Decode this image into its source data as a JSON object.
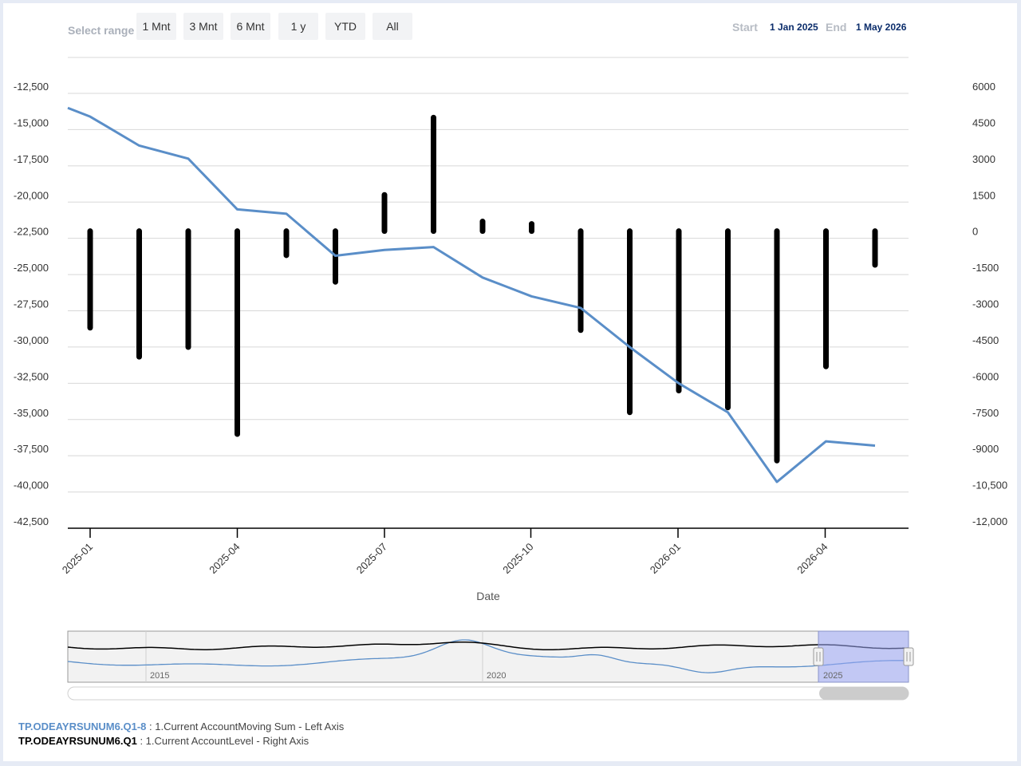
{
  "range_selector": {
    "label": "Select range",
    "buttons": [
      "1 Mnt",
      "3 Mnt",
      "6 Mnt",
      "1 y",
      "YTD",
      "All"
    ],
    "start_label": "Start",
    "start_value": "1 Jan 2025",
    "end_label": "End",
    "end_value": "1 May 2026"
  },
  "chart_data": {
    "type": "line+bar",
    "xlabel": "Date",
    "x_ticks": [
      "2025-01",
      "2025-04",
      "2025-07",
      "2025-10",
      "2026-01",
      "2026-04"
    ],
    "left_axis": {
      "ticks": [
        "-12,500",
        "-15,000",
        "-17,500",
        "-20,000",
        "-22,500",
        "-25,000",
        "-27,500",
        "-30,000",
        "-32,500",
        "-35,000",
        "-37,500",
        "-40,000",
        "-42,500"
      ],
      "ylim": [
        -42500,
        -12500
      ]
    },
    "right_axis": {
      "ticks": [
        "6000",
        "4500",
        "3000",
        "1500",
        "0",
        "-1500",
        "-3000",
        "-4500",
        "-6000",
        "-7500",
        "-9000",
        "-10,500",
        "-12,000"
      ],
      "ylim": [
        -12000,
        6000
      ]
    },
    "x": [
      "2025-01",
      "2025-02",
      "2025-03",
      "2025-04",
      "2025-05",
      "2025-06",
      "2025-07",
      "2025-08",
      "2025-09",
      "2025-10",
      "2025-11",
      "2025-12",
      "2026-01",
      "2026-02",
      "2026-03",
      "2026-04",
      "2026-05"
    ],
    "series": [
      {
        "name": "TP.ODEAYRSUNUM6.Q1-8",
        "type": "line",
        "axis": "left",
        "color": "#5a8ec8",
        "values": [
          -14600,
          -16600,
          -17500,
          -21000,
          -21300,
          -24200,
          -23800,
          -23600,
          -25700,
          -27000,
          -27800,
          -30500,
          -33000,
          -35000,
          -39800,
          -37000,
          -37300
        ]
      },
      {
        "name": "TP.ODEAYRSUNUM6.Q1",
        "type": "bar",
        "axis": "right",
        "color": "#000000",
        "values": [
          -4000,
          -5200,
          -4800,
          -8400,
          -1000,
          -2100,
          1500,
          4700,
          400,
          300,
          -4100,
          -7500,
          -6600,
          -7300,
          -9500,
          -5600,
          -1400
        ]
      }
    ]
  },
  "navigator": {
    "year_labels": [
      "2015",
      "2020",
      "2025"
    ]
  },
  "legend": [
    {
      "code": "TP.ODEAYRSUNUM6.Q1-8",
      "desc": " : 1.Current AccountMoving Sum - Left Axis"
    },
    {
      "code": "TP.ODEAYRSUNUM6.Q1",
      "desc": " : 1.Current AccountLevel - Right Axis"
    }
  ]
}
